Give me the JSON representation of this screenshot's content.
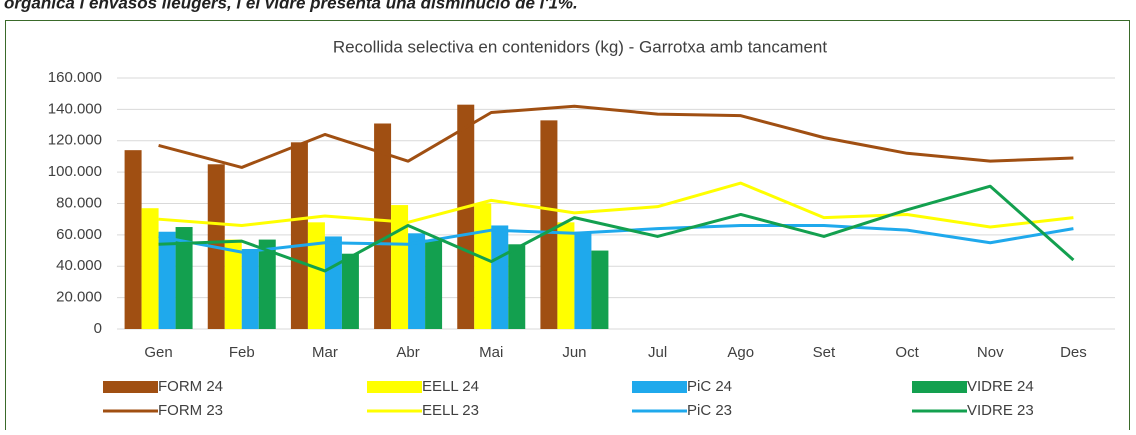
{
  "caption": "orgànica i envasos lleugers, i el vidre presenta una disminució de l'1%.",
  "chart_data": {
    "type": "combo",
    "title": "Recollida selectiva en contenidors (kg) - Garrotxa amb tancament",
    "categories": [
      "Gen",
      "Feb",
      "Mar",
      "Abr",
      "Mai",
      "Jun",
      "Jul",
      "Ago",
      "Set",
      "Oct",
      "Nov",
      "Des"
    ],
    "ylim": [
      0,
      160000
    ],
    "yticks": [
      0,
      {
        "value": 20000,
        "label": "20.000"
      },
      {
        "value": 40000,
        "label": "40.000"
      },
      {
        "value": 60000,
        "label": "60.000"
      },
      {
        "value": 80000,
        "label": "80.000"
      },
      {
        "value": 100000,
        "label": "100.000"
      },
      {
        "value": 120000,
        "label": "120.000"
      },
      {
        "value": 140000,
        "label": "140.000"
      },
      {
        "value": 160000,
        "label": "160.000"
      }
    ],
    "grid": true,
    "series": [
      {
        "name": "FORM 24",
        "type": "bar",
        "color": "#a04f12",
        "values": [
          114000,
          105000,
          119000,
          131000,
          143000,
          133000,
          null,
          null,
          null,
          null,
          null,
          null
        ]
      },
      {
        "name": "EELL 24",
        "type": "bar",
        "color": "#ffff00",
        "values": [
          77000,
          57000,
          68000,
          79000,
          80000,
          68000,
          null,
          null,
          null,
          null,
          null,
          null
        ]
      },
      {
        "name": "PiC 24",
        "type": "bar",
        "color": "#1fa9ec",
        "values": [
          62000,
          51000,
          59000,
          61000,
          66000,
          62000,
          null,
          null,
          null,
          null,
          null,
          null
        ]
      },
      {
        "name": "VIDRE 24",
        "type": "bar",
        "color": "#13a04f",
        "values": [
          65000,
          57000,
          48000,
          57000,
          54000,
          50000,
          null,
          null,
          null,
          null,
          null,
          null
        ]
      },
      {
        "name": "FORM 23",
        "type": "line",
        "color": "#a04f12",
        "values": [
          117000,
          103000,
          124000,
          107000,
          138000,
          142000,
          137000,
          136000,
          122000,
          112000,
          107000,
          109000
        ]
      },
      {
        "name": "EELL 23",
        "type": "line",
        "color": "#ffff00",
        "values": [
          70000,
          66000,
          72000,
          68000,
          82000,
          74000,
          78000,
          93000,
          71000,
          73000,
          65000,
          71000
        ]
      },
      {
        "name": "PiC 23",
        "type": "line",
        "color": "#1fa9ec",
        "values": [
          59000,
          49000,
          55000,
          54000,
          63000,
          61000,
          64000,
          66000,
          66000,
          63000,
          55000,
          64000
        ]
      },
      {
        "name": "VIDRE 23",
        "type": "line",
        "color": "#13a04f",
        "values": [
          54000,
          56000,
          37000,
          66000,
          43000,
          71000,
          59000,
          73000,
          59000,
          76000,
          91000,
          44000
        ]
      }
    ]
  }
}
